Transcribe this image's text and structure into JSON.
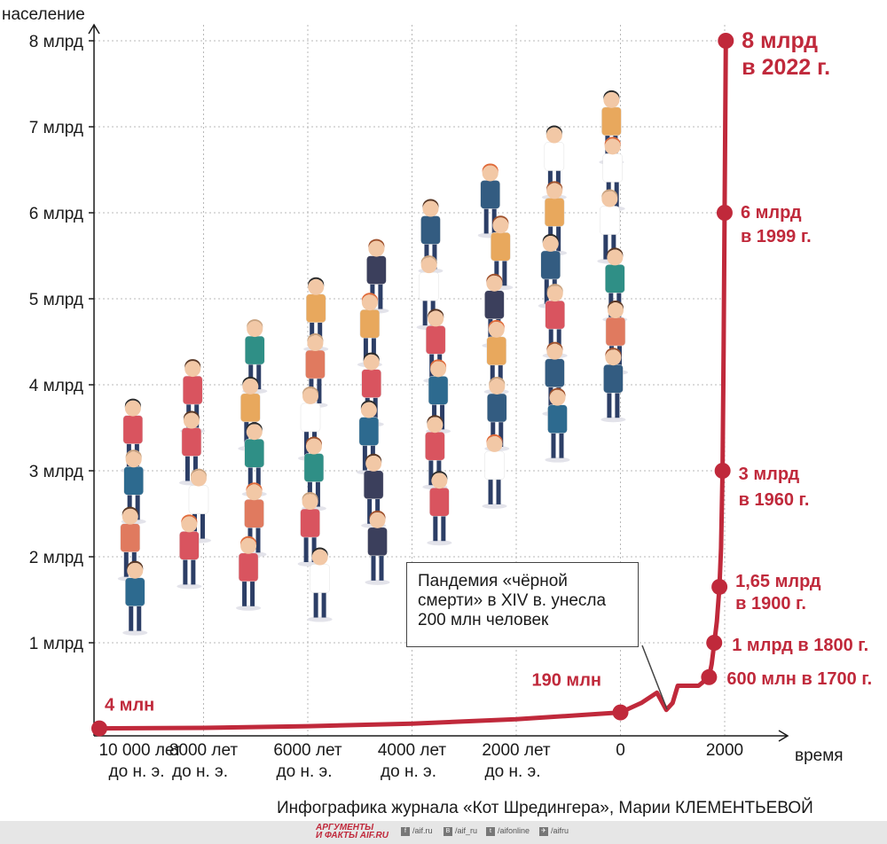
{
  "chart_data": {
    "type": "line",
    "ylabel": "население",
    "xlabel": "время",
    "y_ticks": [
      "1 млрд",
      "2 млрд",
      "3 млрд",
      "4 млрд",
      "5 млрд",
      "6 млрд",
      "7 млрд",
      "8 млрд"
    ],
    "x_ticks": [
      {
        "line1": "10 000 лет",
        "line2": "до н. э."
      },
      {
        "line1": "8000 лет",
        "line2": "до н. э."
      },
      {
        "line1": "6000 лет",
        "line2": "до н. э."
      },
      {
        "line1": "4000 лет",
        "line2": "до н. э."
      },
      {
        "line1": "2000 лет",
        "line2": "до н. э."
      },
      {
        "line1": "0",
        "line2": ""
      },
      {
        "line1": "2000",
        "line2": ""
      }
    ],
    "ylim": [
      0,
      8.4
    ],
    "xlim": [
      -10000,
      2000
    ],
    "grid": true,
    "series": [
      {
        "x": [
          -10000,
          -8000,
          -6000,
          -4000,
          -2000,
          0,
          400,
          700,
          880,
          1000,
          1100,
          1350,
          1500,
          1600,
          1700,
          1750,
          1800,
          1850,
          1900,
          1930,
          1960,
          1980,
          1999,
          2010,
          2022
        ],
        "values": [
          0.004,
          0.01,
          0.03,
          0.06,
          0.11,
          0.19,
          0.3,
          0.42,
          0.22,
          0.3,
          0.5,
          0.5,
          0.5,
          0.55,
          0.6,
          0.75,
          1.0,
          1.25,
          1.65,
          2.1,
          3.0,
          4.4,
          6.0,
          7.0,
          8.0
        ]
      }
    ],
    "points": [
      {
        "x": -10000,
        "y": 0.004,
        "label": "4 млн",
        "label2": ""
      },
      {
        "x": 0,
        "y": 0.19,
        "label": "190 млн",
        "label2": ""
      },
      {
        "x": 1700,
        "y": 0.6,
        "label": "600 млн в 1700 г.",
        "label2": ""
      },
      {
        "x": 1800,
        "y": 1.0,
        "label": "1 млрд в 1800 г.",
        "label2": ""
      },
      {
        "x": 1900,
        "y": 1.65,
        "label": "1,65 млрд",
        "label2": "в 1900 г."
      },
      {
        "x": 1960,
        "y": 3.0,
        "label": "3 млрд",
        "label2": "в 1960 г."
      },
      {
        "x": 1999,
        "y": 6.0,
        "label": "6 млрд",
        "label2": "в 1999 г."
      },
      {
        "x": 2022,
        "y": 8.0,
        "label": "8 млрд",
        "label2": "в 2022 г."
      }
    ],
    "annotation": {
      "line1": "Пандемия «чёрной",
      "line2": "смерти» в XIV в. унесла",
      "line3": "200 млн человек"
    },
    "colors": {
      "line": "#c0293b",
      "grid": "#b8b8b8",
      "axis": "#1a1a1a"
    }
  },
  "credit": "Инфографика журнала «Кот Шредингера», Марии КЛЕМЕНТЬЕВОЙ",
  "footer": {
    "logo_line1": "АРГУМЕНТЫ",
    "logo_line2": "И ФАКТЫ AIF.RU",
    "social": [
      "/aif.ru",
      "/aif_ru",
      "/aifonline",
      "/aifru"
    ],
    "social_icons": [
      "facebook-icon",
      "vk-icon",
      "twitter-icon",
      "telegram-icon"
    ]
  }
}
